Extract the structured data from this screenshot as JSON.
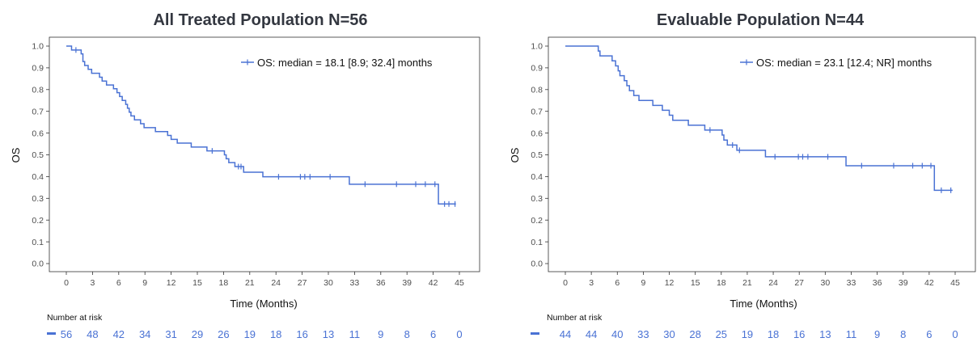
{
  "colors": {
    "series": "#4a72d4",
    "title": "#333740",
    "frame": "#333333"
  },
  "chart_data": [
    {
      "type": "line",
      "title": "All Treated Population N=56",
      "xlabel": "Time (Months)",
      "ylabel": "OS",
      "xlim": [
        0,
        45
      ],
      "ylim": [
        0,
        1
      ],
      "xticks": [
        0,
        3,
        6,
        9,
        12,
        15,
        18,
        21,
        24,
        27,
        30,
        33,
        36,
        39,
        42,
        45
      ],
      "yticks": [
        "0.0",
        "0.1",
        "0.2",
        "0.3",
        "0.4",
        "0.5",
        "0.6",
        "0.7",
        "0.8",
        "0.9",
        "1.0"
      ],
      "grid": false,
      "legend_position": "top-right",
      "series": [
        {
          "name": "OS: median = 18.1 [8.9; 32.4] months",
          "steps": [
            [
              0,
              1.0
            ],
            [
              0.6,
              0.982
            ],
            [
              1.7,
              0.964
            ],
            [
              1.9,
              0.929
            ],
            [
              2.1,
              0.911
            ],
            [
              2.5,
              0.893
            ],
            [
              2.9,
              0.875
            ],
            [
              3.8,
              0.857
            ],
            [
              4.1,
              0.839
            ],
            [
              4.6,
              0.821
            ],
            [
              5.4,
              0.804
            ],
            [
              5.8,
              0.786
            ],
            [
              6.1,
              0.768
            ],
            [
              6.4,
              0.75
            ],
            [
              6.8,
              0.732
            ],
            [
              7.0,
              0.714
            ],
            [
              7.2,
              0.696
            ],
            [
              7.4,
              0.679
            ],
            [
              7.8,
              0.661
            ],
            [
              8.5,
              0.643
            ],
            [
              8.9,
              0.625
            ],
            [
              10.2,
              0.607
            ],
            [
              11.6,
              0.589
            ],
            [
              12.0,
              0.571
            ],
            [
              12.7,
              0.554
            ],
            [
              14.3,
              0.536
            ],
            [
              16.1,
              0.518
            ],
            [
              18.1,
              0.5
            ],
            [
              18.3,
              0.482
            ],
            [
              18.6,
              0.464
            ],
            [
              19.3,
              0.446
            ],
            [
              20.3,
              0.42
            ],
            [
              22.5,
              0.399
            ],
            [
              32.4,
              0.365
            ],
            [
              42.6,
              0.274
            ]
          ],
          "censored": [
            [
              1.1,
              0.982
            ],
            [
              16.7,
              0.518
            ],
            [
              19.7,
              0.446
            ],
            [
              20.0,
              0.446
            ],
            [
              24.3,
              0.399
            ],
            [
              26.8,
              0.399
            ],
            [
              27.3,
              0.399
            ],
            [
              27.9,
              0.399
            ],
            [
              30.2,
              0.399
            ],
            [
              34.2,
              0.365
            ],
            [
              37.8,
              0.365
            ],
            [
              40.0,
              0.365
            ],
            [
              41.1,
              0.365
            ],
            [
              42.2,
              0.365
            ],
            [
              43.3,
              0.274
            ],
            [
              43.8,
              0.274
            ],
            [
              44.5,
              0.274
            ]
          ],
          "end_x": 44.6
        }
      ],
      "risk_table": {
        "label": "Number at risk",
        "times": [
          0,
          3,
          6,
          9,
          12,
          15,
          18,
          21,
          24,
          27,
          30,
          33,
          36,
          39,
          42,
          45
        ],
        "counts": [
          "56",
          "48",
          "42",
          "34",
          "31",
          "29",
          "26",
          "19",
          "18",
          "16",
          "13",
          "11",
          "9",
          "8",
          "6",
          "0"
        ]
      }
    },
    {
      "type": "line",
      "title": "Evaluable Population N=44",
      "xlabel": "Time (Months)",
      "ylabel": "OS",
      "xlim": [
        0,
        45
      ],
      "ylim": [
        0,
        1
      ],
      "xticks": [
        0,
        3,
        6,
        9,
        12,
        15,
        18,
        21,
        24,
        27,
        30,
        33,
        36,
        39,
        42,
        45
      ],
      "yticks": [
        "0.0",
        "0.1",
        "0.2",
        "0.3",
        "0.4",
        "0.5",
        "0.6",
        "0.7",
        "0.8",
        "0.9",
        "1.0"
      ],
      "grid": false,
      "legend_position": "top-right",
      "series": [
        {
          "name": "OS: median = 23.1 [12.4; NR] months",
          "steps": [
            [
              0,
              1.0
            ],
            [
              3.8,
              0.977
            ],
            [
              4.0,
              0.955
            ],
            [
              5.4,
              0.932
            ],
            [
              5.8,
              0.909
            ],
            [
              6.1,
              0.886
            ],
            [
              6.3,
              0.864
            ],
            [
              6.8,
              0.841
            ],
            [
              7.1,
              0.818
            ],
            [
              7.4,
              0.795
            ],
            [
              7.9,
              0.773
            ],
            [
              8.5,
              0.75
            ],
            [
              10.1,
              0.727
            ],
            [
              11.2,
              0.705
            ],
            [
              12.0,
              0.682
            ],
            [
              12.4,
              0.659
            ],
            [
              14.2,
              0.636
            ],
            [
              16.1,
              0.614
            ],
            [
              18.1,
              0.591
            ],
            [
              18.3,
              0.568
            ],
            [
              18.7,
              0.545
            ],
            [
              19.8,
              0.521
            ],
            [
              23.1,
              0.491
            ],
            [
              32.4,
              0.45
            ],
            [
              42.6,
              0.337
            ]
          ],
          "censored": [
            [
              16.7,
              0.614
            ],
            [
              19.3,
              0.545
            ],
            [
              20.1,
              0.521
            ],
            [
              24.2,
              0.491
            ],
            [
              26.9,
              0.491
            ],
            [
              27.4,
              0.491
            ],
            [
              28.0,
              0.491
            ],
            [
              30.3,
              0.491
            ],
            [
              34.2,
              0.45
            ],
            [
              37.9,
              0.45
            ],
            [
              40.1,
              0.45
            ],
            [
              41.2,
              0.45
            ],
            [
              42.2,
              0.45
            ],
            [
              43.4,
              0.337
            ],
            [
              44.5,
              0.337
            ]
          ],
          "end_x": 44.7
        }
      ],
      "risk_table": {
        "label": "Number at risk",
        "times": [
          0,
          3,
          6,
          9,
          12,
          15,
          18,
          21,
          24,
          27,
          30,
          33,
          36,
          39,
          42,
          45
        ],
        "counts": [
          "44",
          "44",
          "40",
          "33",
          "30",
          "28",
          "25",
          "19",
          "18",
          "16",
          "13",
          "11",
          "9",
          "8",
          "6",
          "0"
        ]
      }
    }
  ]
}
